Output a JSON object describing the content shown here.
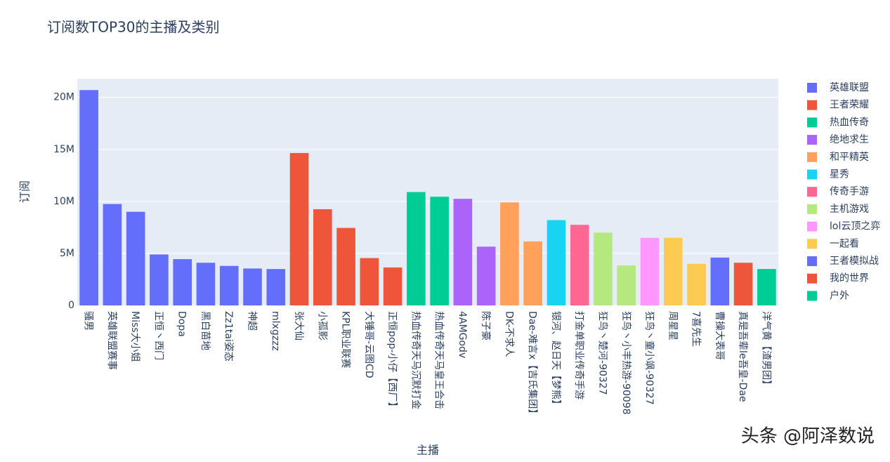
{
  "chart_data": {
    "type": "bar",
    "title": "订阅数TOP30的主播及类别",
    "x_label": "主播",
    "y_label": "订阅",
    "watermark": "头条 @阿泽数说",
    "categories": [
      "骚男",
      "英雄联盟赛事",
      "Miss大小姐",
      "正恒丶西门",
      "Dopa",
      "黑白苗地",
      "Zz1tai姿态",
      "神超",
      "mlxgzzz",
      "张大仙",
      "小孤影",
      "KPL职业联赛",
      "大锤哥-云图CD",
      "正恒pop-小仔【西厂】",
      "热血传奇天马沉默打金",
      "热血传奇天马皇王合击",
      "4AMGodv",
      "陈子豪",
      "DK-不求人",
      "Dae-难言x【吉氏集团】",
      "银河、赵日天【梦熊】",
      "打金单职业传奇手游",
      "狂鸟丶楚河-90327",
      "狂鸟丶小丰热游-90098",
      "狂鸟丶童小飒-90327",
      "周星星",
      "7喜先生",
      "曹操大表哥",
      "真是吾辈le吾皇-Dae",
      "洋气黄【渣男团】"
    ],
    "series": [
      {
        "name": "英雄联盟",
        "color": "#636efa",
        "values": [
          20700000,
          9750000,
          9000000,
          4900000,
          4450000,
          4100000,
          3800000,
          3550000,
          3500000,
          null,
          null,
          null,
          null,
          null,
          null,
          null,
          null,
          null,
          null,
          null,
          null,
          null,
          null,
          null,
          null,
          null,
          null,
          null,
          null,
          null
        ]
      },
      {
        "name": "王者荣耀",
        "color": "#EF553B",
        "values": [
          null,
          null,
          null,
          null,
          null,
          null,
          null,
          null,
          null,
          14650000,
          9250000,
          7450000,
          4550000,
          3650000,
          null,
          null,
          null,
          null,
          null,
          null,
          null,
          null,
          null,
          null,
          null,
          null,
          null,
          null,
          null,
          null
        ]
      },
      {
        "name": "热血传奇",
        "color": "#00cc96",
        "values": [
          null,
          null,
          null,
          null,
          null,
          null,
          null,
          null,
          null,
          null,
          null,
          null,
          null,
          null,
          10900000,
          10450000,
          null,
          null,
          null,
          null,
          null,
          null,
          null,
          null,
          null,
          null,
          null,
          null,
          null,
          null
        ]
      },
      {
        "name": "绝地求生",
        "color": "#ab63fa",
        "values": [
          null,
          null,
          null,
          null,
          null,
          null,
          null,
          null,
          null,
          null,
          null,
          null,
          null,
          null,
          null,
          null,
          10250000,
          5650000,
          null,
          null,
          null,
          null,
          null,
          null,
          null,
          null,
          null,
          null,
          null,
          null
        ]
      },
      {
        "name": "和平精英",
        "color": "#FFA15A",
        "values": [
          null,
          null,
          null,
          null,
          null,
          null,
          null,
          null,
          null,
          null,
          null,
          null,
          null,
          null,
          null,
          null,
          null,
          null,
          9900000,
          6150000,
          null,
          null,
          null,
          null,
          null,
          null,
          null,
          null,
          null,
          null
        ]
      },
      {
        "name": "星秀",
        "color": "#19d3f3",
        "values": [
          null,
          null,
          null,
          null,
          null,
          null,
          null,
          null,
          null,
          null,
          null,
          null,
          null,
          null,
          null,
          null,
          null,
          null,
          null,
          null,
          8200000,
          null,
          null,
          null,
          null,
          null,
          null,
          null,
          null,
          null
        ]
      },
      {
        "name": "传奇手游",
        "color": "#FF6692",
        "values": [
          null,
          null,
          null,
          null,
          null,
          null,
          null,
          null,
          null,
          null,
          null,
          null,
          null,
          null,
          null,
          null,
          null,
          null,
          null,
          null,
          null,
          7750000,
          null,
          null,
          null,
          null,
          null,
          null,
          null,
          null
        ]
      },
      {
        "name": "主机游戏",
        "color": "#B6E880",
        "values": [
          null,
          null,
          null,
          null,
          null,
          null,
          null,
          null,
          null,
          null,
          null,
          null,
          null,
          null,
          null,
          null,
          null,
          null,
          null,
          null,
          null,
          null,
          7000000,
          3850000,
          null,
          null,
          null,
          null,
          null,
          null
        ]
      },
      {
        "name": "lol云顶之弈",
        "color": "#FF97FF",
        "values": [
          null,
          null,
          null,
          null,
          null,
          null,
          null,
          null,
          null,
          null,
          null,
          null,
          null,
          null,
          null,
          null,
          null,
          null,
          null,
          null,
          null,
          null,
          null,
          null,
          6500000,
          null,
          null,
          null,
          null,
          null
        ]
      },
      {
        "name": "一起看",
        "color": "#FECB52",
        "values": [
          null,
          null,
          null,
          null,
          null,
          null,
          null,
          null,
          null,
          null,
          null,
          null,
          null,
          null,
          null,
          null,
          null,
          null,
          null,
          null,
          null,
          null,
          null,
          null,
          null,
          6500000,
          4000000,
          null,
          null,
          null
        ]
      },
      {
        "name": "王者模拟战",
        "color": "#636efa",
        "values": [
          null,
          null,
          null,
          null,
          null,
          null,
          null,
          null,
          null,
          null,
          null,
          null,
          null,
          null,
          null,
          null,
          null,
          null,
          null,
          null,
          null,
          null,
          null,
          null,
          null,
          null,
          null,
          4600000,
          null,
          null
        ]
      },
      {
        "name": "我的世界",
        "color": "#EF553B",
        "values": [
          null,
          null,
          null,
          null,
          null,
          null,
          null,
          null,
          null,
          null,
          null,
          null,
          null,
          null,
          null,
          null,
          null,
          null,
          null,
          null,
          null,
          null,
          null,
          null,
          null,
          null,
          null,
          null,
          4100000,
          null
        ]
      },
      {
        "name": "户外",
        "color": "#00cc96",
        "values": [
          null,
          null,
          null,
          null,
          null,
          null,
          null,
          null,
          null,
          null,
          null,
          null,
          null,
          null,
          null,
          null,
          null,
          null,
          null,
          null,
          null,
          null,
          null,
          null,
          null,
          null,
          null,
          null,
          null,
          3500000
        ]
      }
    ],
    "ylim": [
      0,
      21800000
    ],
    "yticks": [
      0,
      {
        "value": 5000000,
        "label": "5M"
      },
      {
        "value": 10000000,
        "label": "10M"
      },
      {
        "value": 15000000,
        "label": "15M"
      },
      {
        "value": 20000000,
        "label": "20M"
      }
    ],
    "grid": true,
    "legend": "right"
  }
}
